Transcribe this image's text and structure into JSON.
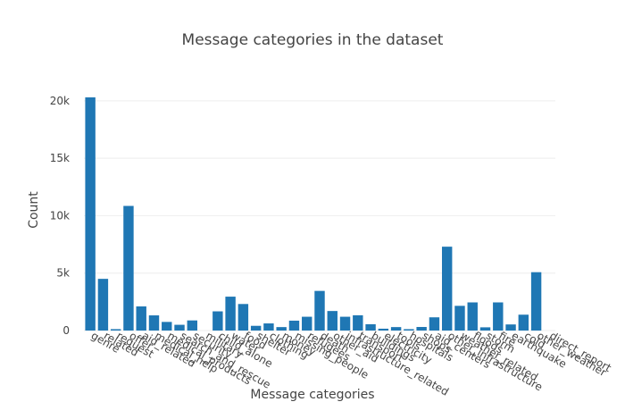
{
  "chart_data": {
    "type": "bar",
    "title": "Message categories in the dataset",
    "xlabel": "Message categories",
    "ylabel": "Count",
    "ylim": [
      0,
      21000
    ],
    "yticks": [
      {
        "value": 0,
        "label": "0"
      },
      {
        "value": 5000,
        "label": "5k"
      },
      {
        "value": 10000,
        "label": "10k"
      },
      {
        "value": 15000,
        "label": "15k"
      },
      {
        "value": 20000,
        "label": "20k"
      }
    ],
    "grid": true,
    "bar_color": "#1f77b4",
    "categories": [
      "genre",
      "related",
      "request",
      "offer",
      "aid_related",
      "medical_help",
      "medical_products",
      "search_and_rescue",
      "security",
      "military",
      "child_alone",
      "water",
      "food",
      "shelter",
      "clothing",
      "money",
      "missing_people",
      "refugees",
      "death",
      "other_aid",
      "infrastructure_related",
      "transport",
      "buildings",
      "electricity",
      "tools",
      "hospitals",
      "shops",
      "aid_centers",
      "other_infrastructure",
      "weather_related",
      "floods",
      "storm",
      "fire",
      "earthquake",
      "cold",
      "other_weather",
      "direct_report"
    ],
    "values": [
      20300,
      4500,
      120,
      10850,
      2100,
      1320,
      750,
      500,
      880,
      0,
      1670,
      2950,
      2310,
      410,
      620,
      300,
      860,
      1200,
      3450,
      1700,
      1200,
      1330,
      550,
      160,
      300,
      120,
      310,
      1150,
      7300,
      2150,
      2450,
      280,
      2450,
      530,
      1380,
      5080,
      0
    ]
  }
}
